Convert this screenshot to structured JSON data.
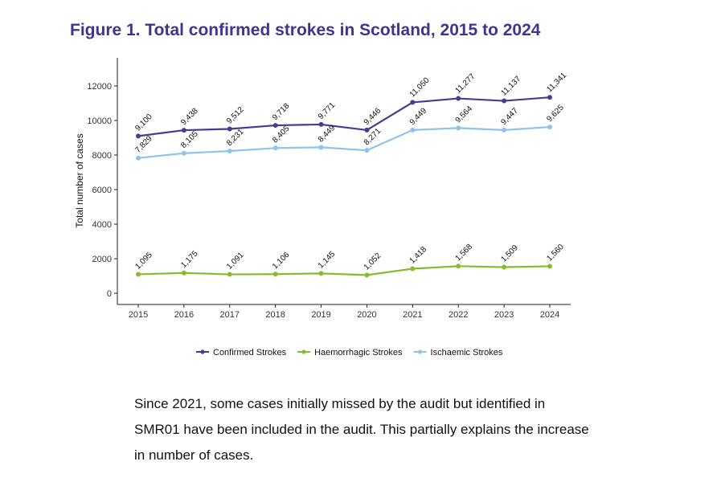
{
  "figure": {
    "title": "Figure 1. Total confirmed strokes in Scotland, 2015 to 2024"
  },
  "note": {
    "lines": [
      "Since 2021, some cases initially missed by the audit but identified in",
      "SMR01 have been included in the audit. This partially explains the increase",
      "in number of cases."
    ]
  },
  "chart_data": {
    "type": "line",
    "title": "Figure 1. Total confirmed strokes in Scotland, 2015 to 2024",
    "xlabel": "",
    "ylabel": "Total number of cases",
    "x": [
      "2015",
      "2016",
      "2017",
      "2018",
      "2019",
      "2020",
      "2021",
      "2022",
      "2023",
      "2024"
    ],
    "ylim": [
      0,
      13200
    ],
    "yticks": [
      0,
      2000,
      4000,
      6000,
      8000,
      10000,
      12000
    ],
    "grid": false,
    "legend_position": "bottom",
    "series": [
      {
        "name": "Confirmed Strokes",
        "color": "#4b3a8f",
        "values": [
          9100,
          9438,
          9512,
          9718,
          9771,
          9446,
          11050,
          11277,
          11137,
          11341
        ],
        "labels": [
          "9,100",
          "9,438",
          "9,512",
          "9,718",
          "9,771",
          "9,446",
          "11,050",
          "11,277",
          "11,137",
          "11,341"
        ]
      },
      {
        "name": "Haemorrhagic Strokes",
        "color": "#86bc2d",
        "values": [
          1095,
          1175,
          1091,
          1106,
          1145,
          1052,
          1418,
          1568,
          1509,
          1560
        ],
        "labels": [
          "1,095",
          "1,175",
          "1,091",
          "1,106",
          "1,145",
          "1,052",
          "1,418",
          "1,568",
          "1,509",
          "1,560"
        ]
      },
      {
        "name": "Ischaemic Strokes",
        "color": "#8ec3ea",
        "values": [
          7829,
          8105,
          8231,
          8405,
          8449,
          8271,
          9449,
          9564,
          9447,
          9625
        ],
        "labels": [
          "7,829",
          "8,105",
          "8,231",
          "8,405",
          "8,449",
          "8,271",
          "9,449",
          "9,564",
          "9,447",
          "9,625"
        ]
      }
    ]
  }
}
